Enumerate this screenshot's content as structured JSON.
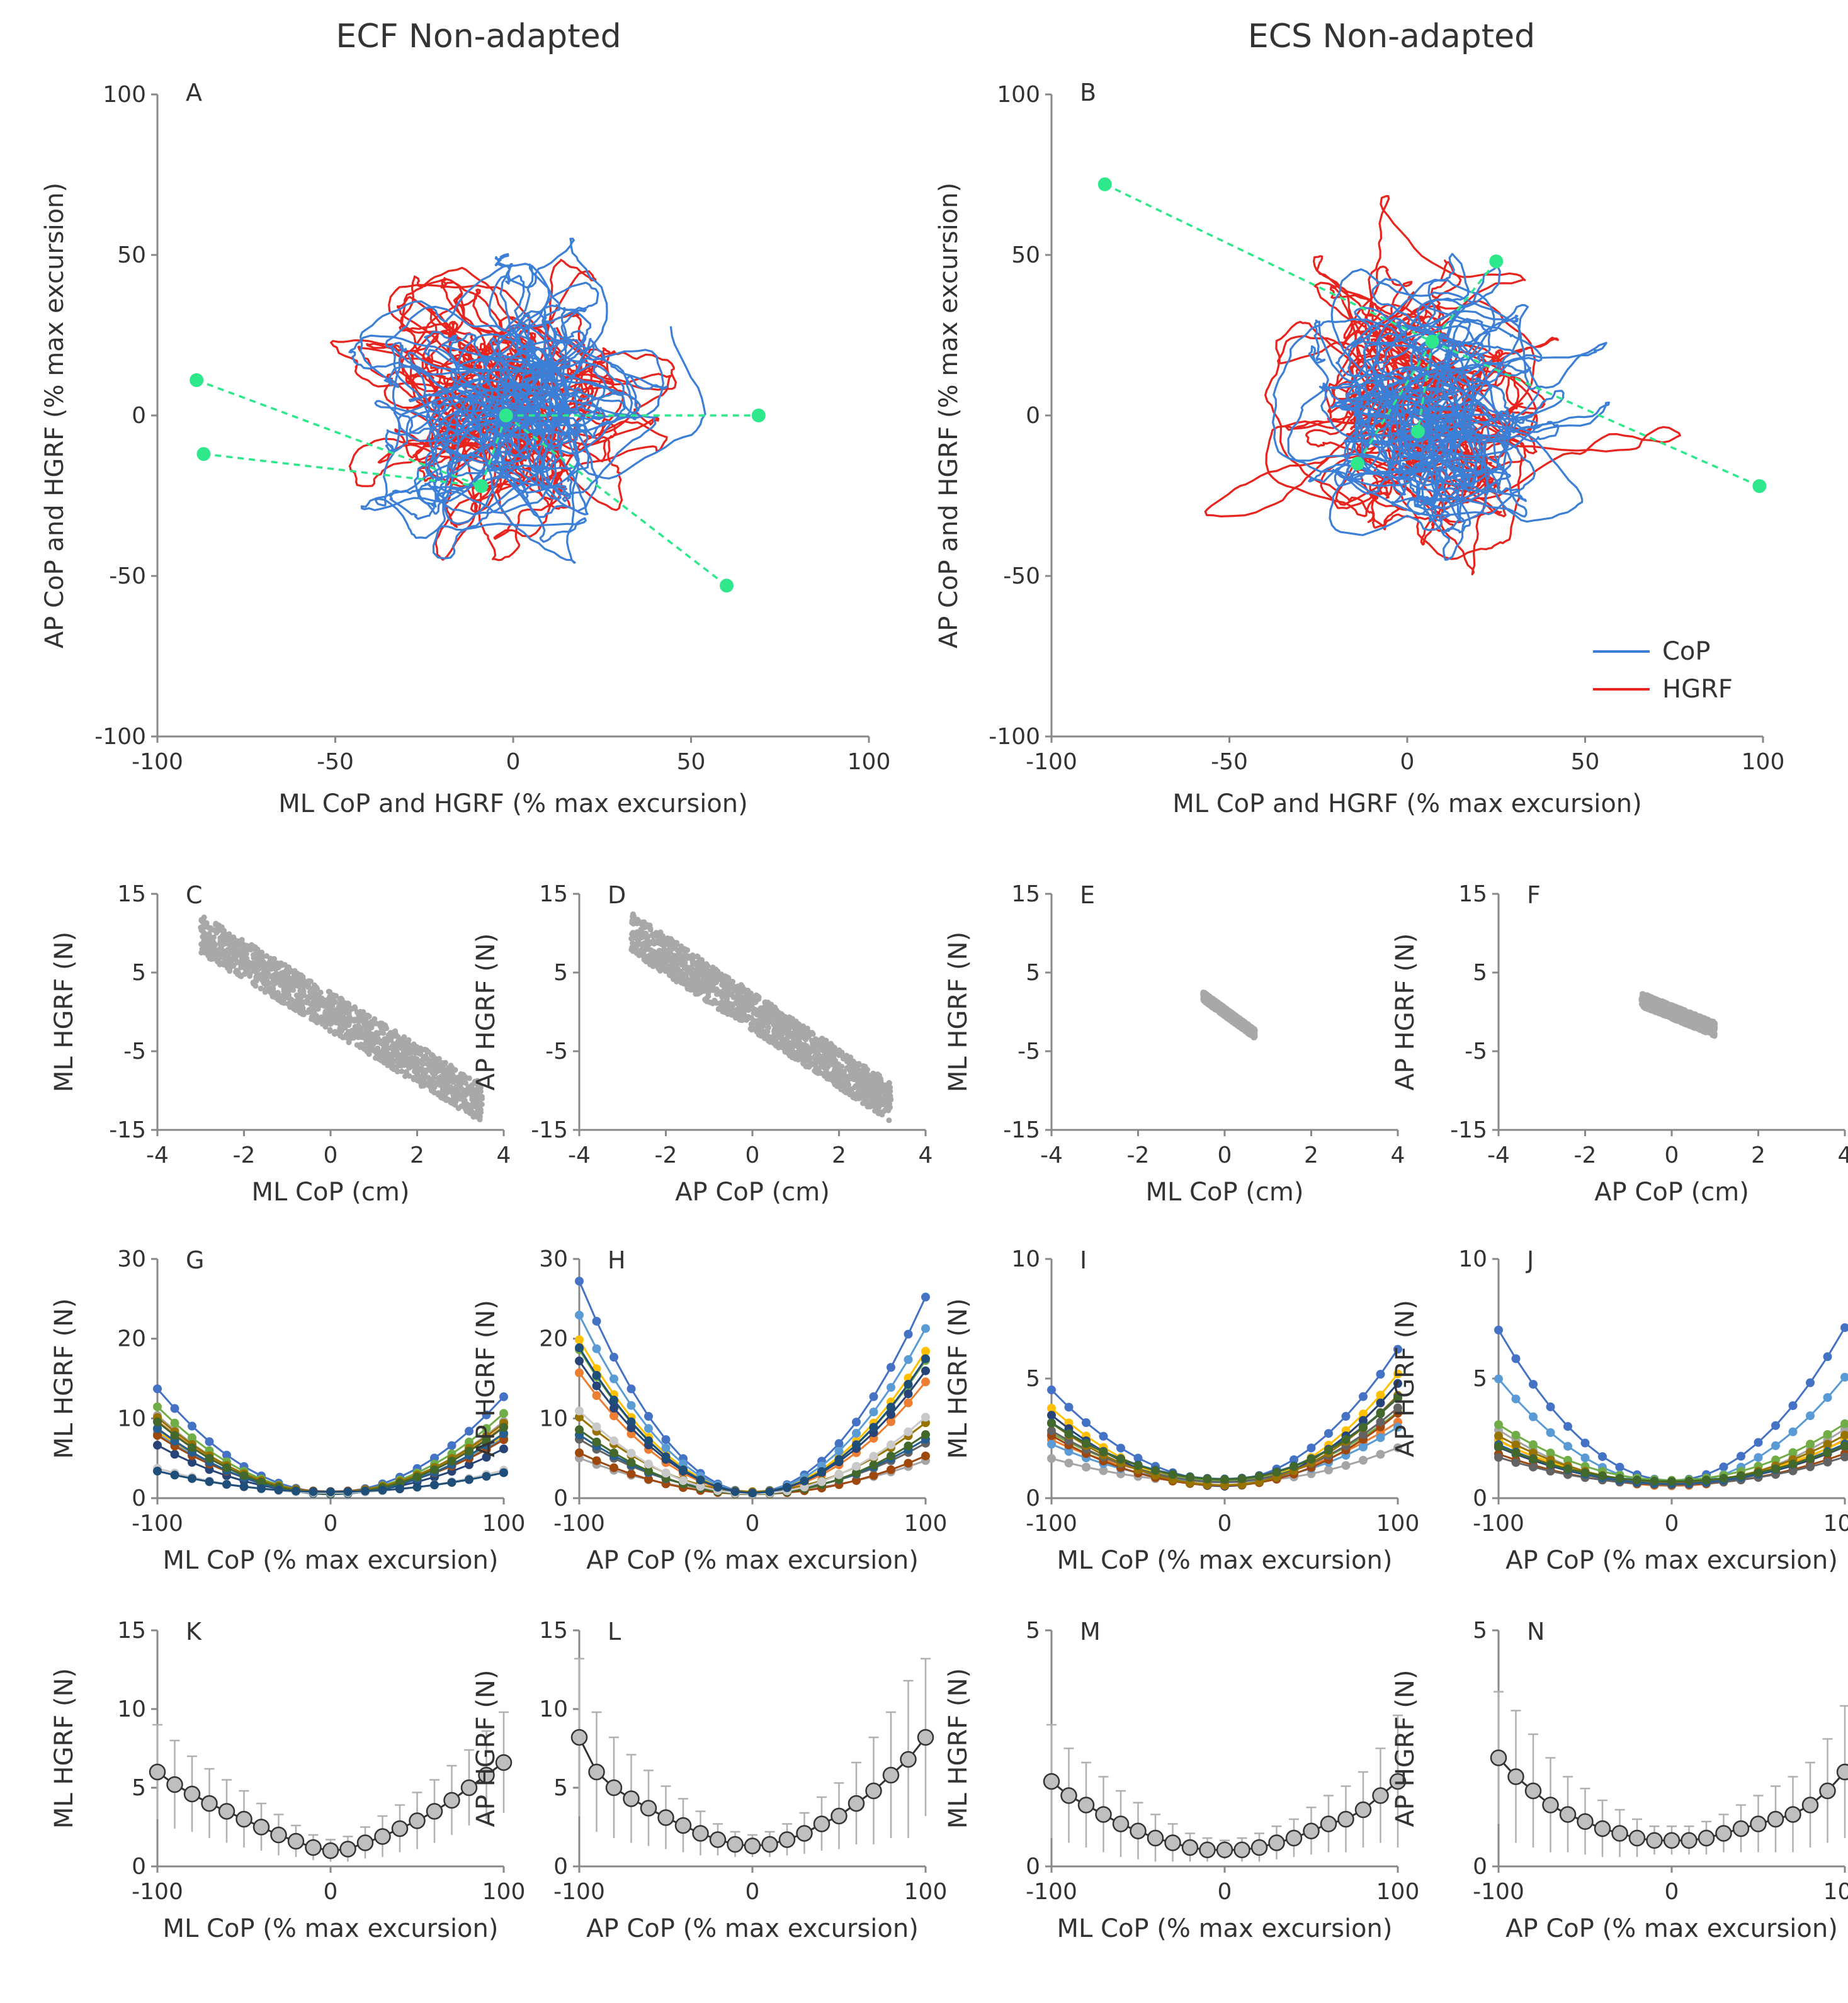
{
  "titles": {
    "left": "ECF Non-adapted",
    "right": "ECS Non-adapted"
  },
  "colors": {
    "cop": "#3c7fd6",
    "hgrf": "#e8241e",
    "green": "#2ee88b",
    "grey": "#a8a8a8",
    "axis": "#888888"
  },
  "legend": {
    "cop": "CoP",
    "hgrf": "HGRF"
  },
  "chart_data": [
    {
      "panel": "A",
      "type": "line",
      "xlabel": "ML CoP and HGRF (% max excursion)",
      "ylabel": "AP CoP and HGRF (% max excursion)",
      "xlim": [
        -100,
        100
      ],
      "ylim": [
        -100,
        100
      ],
      "xticks": [
        -100,
        -50,
        0,
        50,
        100
      ],
      "yticks": [
        -100,
        -50,
        0,
        50,
        100
      ],
      "series": [
        {
          "name": "CoP"
        },
        {
          "name": "HGRF"
        }
      ],
      "markers": [
        [
          -89,
          11
        ],
        [
          -87,
          -12
        ],
        [
          -2,
          0
        ],
        [
          -9,
          -22
        ],
        [
          69,
          0
        ],
        [
          60,
          -53
        ]
      ]
    },
    {
      "panel": "B",
      "type": "line",
      "xlabel": "ML CoP and HGRF (% max excursion)",
      "ylabel": "AP CoP and HGRF (% max excursion)",
      "xlim": [
        -100,
        100
      ],
      "ylim": [
        -100,
        100
      ],
      "xticks": [
        -100,
        -50,
        0,
        50,
        100
      ],
      "yticks": [
        -100,
        -50,
        0,
        50,
        100
      ],
      "series": [
        {
          "name": "CoP"
        },
        {
          "name": "HGRF"
        }
      ],
      "markers": [
        [
          -85,
          72
        ],
        [
          25,
          48
        ],
        [
          7,
          23
        ],
        [
          3,
          -5
        ],
        [
          -14,
          -15
        ],
        [
          99,
          -22
        ]
      ],
      "legend_position": "bottom-right"
    },
    {
      "panel": "C",
      "type": "scatter",
      "xlabel": "ML CoP (cm)",
      "ylabel": "ML HGRF (N)",
      "xlim": [
        -4,
        4
      ],
      "ylim": [
        -15,
        15
      ],
      "xticks": [
        -4,
        -2,
        0,
        2,
        4
      ],
      "yticks": [
        -15,
        -5,
        5,
        15
      ],
      "trend": {
        "x": [
          -3.0,
          3.5
        ],
        "slope": -3.3,
        "spread": 2.5
      }
    },
    {
      "panel": "D",
      "type": "scatter",
      "xlabel": "AP CoP (cm)",
      "ylabel": "AP HGRF (N)",
      "xlim": [
        -4,
        4
      ],
      "ylim": [
        -15,
        15
      ],
      "xticks": [
        -4,
        -2,
        0,
        2,
        4
      ],
      "yticks": [
        -15,
        -5,
        5,
        15
      ],
      "trend": {
        "x": [
          -2.8,
          3.2
        ],
        "slope": -3.6,
        "spread": 2.5
      }
    },
    {
      "panel": "E",
      "type": "scatter",
      "xlabel": "ML CoP (cm)",
      "ylabel": "ML HGRF (N)",
      "xlim": [
        -4,
        4
      ],
      "ylim": [
        -15,
        15
      ],
      "xticks": [
        -4,
        -2,
        0,
        2,
        4
      ],
      "yticks": [
        -15,
        -5,
        5,
        15
      ],
      "trend": {
        "x": [
          -0.5,
          0.7
        ],
        "slope": -4.0,
        "spread": 0.6
      }
    },
    {
      "panel": "F",
      "type": "scatter",
      "xlabel": "AP CoP (cm)",
      "ylabel": "AP HGRF (N)",
      "xlim": [
        -4,
        4
      ],
      "ylim": [
        -15,
        15
      ],
      "xticks": [
        -4,
        -2,
        0,
        2,
        4
      ],
      "yticks": [
        -15,
        -5,
        5,
        15
      ],
      "trend": {
        "x": [
          -0.7,
          1.0
        ],
        "slope": -2.2,
        "spread": 0.9
      }
    },
    {
      "panel": "G",
      "type": "line",
      "xlabel": "ML CoP (% max excursion)",
      "ylabel": "ML HGRF (N)",
      "xlim": [
        -100,
        100
      ],
      "ylim": [
        0,
        30
      ],
      "xticks": [
        -100,
        0,
        100
      ],
      "yticks": [
        0,
        10,
        20,
        30
      ],
      "curves": {
        "left": [
          13,
          10,
          8.5,
          7.5,
          6,
          5,
          4,
          3.5,
          3,
          2.5,
          2,
          1.8,
          1.5,
          1.5,
          1.4,
          1.2
        ],
        "right": [
          12,
          11,
          10,
          8,
          6,
          5,
          4,
          3,
          2.5,
          2,
          1.5,
          1.3,
          1.2,
          1.2,
          1.2,
          1.2
        ],
        "count": 14
      }
    },
    {
      "panel": "H",
      "type": "line",
      "xlabel": "AP CoP (% max excursion)",
      "ylabel": "AP HGRF (N)",
      "xlim": [
        -100,
        100
      ],
      "ylim": [
        0,
        30
      ],
      "xticks": [
        -100,
        0,
        100
      ],
      "yticks": [
        0,
        10,
        20,
        30
      ],
      "curves": {
        "left": [
          26.5,
          14,
          12,
          10,
          8,
          6.5,
          5,
          4,
          3.5,
          3,
          2.5,
          2,
          1.8,
          1.6,
          1.5,
          1.5
        ],
        "right": [
          24.5,
          17,
          14,
          11,
          8,
          6,
          4.5,
          3.5,
          3,
          2.5,
          2,
          1.8,
          1.6,
          1.5,
          1.5,
          1.5
        ],
        "count": 14
      }
    },
    {
      "panel": "I",
      "type": "line",
      "xlabel": "ML CoP (% max excursion)",
      "ylabel": "ML HGRF (N)",
      "xlim": [
        -100,
        100
      ],
      "ylim": [
        0,
        10
      ],
      "xticks": [
        -100,
        0,
        100
      ],
      "yticks": [
        0,
        5,
        10
      ],
      "curves": {
        "left": [
          3.8,
          3.0,
          2.5,
          2.2,
          1.8,
          1.5,
          1.2,
          1.0,
          0.8,
          0.6,
          0.5,
          0.4,
          0.4,
          0.4,
          0.4,
          0.4
        ],
        "right": [
          5.5,
          4.0,
          3.0,
          2.5,
          2.0,
          1.5,
          1.2,
          1.0,
          0.8,
          0.6,
          0.5,
          0.4,
          0.4,
          0.4,
          0.4,
          0.4
        ],
        "count": 12
      }
    },
    {
      "panel": "J",
      "type": "line",
      "xlabel": "AP CoP (% max excursion)",
      "ylabel": "AP HGRF (N)",
      "xlim": [
        -100,
        100
      ],
      "ylim": [
        0,
        10
      ],
      "xticks": [
        -100,
        0,
        100
      ],
      "yticks": [
        0,
        5,
        10
      ],
      "curves": {
        "left": [
          6.3,
          5.8,
          5.2,
          4.5,
          3.8,
          3.0,
          2.5,
          2.0,
          1.6,
          1.3,
          1.0,
          0.9,
          0.8,
          0.8,
          0.8,
          0.8
        ],
        "right": [
          6.4,
          3.8,
          3.0,
          2.5,
          2.0,
          1.6,
          1.3,
          1.1,
          1.0,
          0.9,
          0.8,
          0.8,
          0.8,
          0.8,
          0.8,
          0.8
        ],
        "count": 12
      }
    },
    {
      "panel": "K",
      "type": "line",
      "xlabel": "ML CoP (% max excursion)",
      "ylabel": "ML HGRF (N)",
      "xlim": [
        -100,
        100
      ],
      "ylim": [
        0,
        15
      ],
      "xticks": [
        -100,
        0,
        100
      ],
      "yticks": [
        0,
        5,
        10,
        15
      ],
      "x": [
        -100,
        -90,
        -80,
        -70,
        -60,
        -50,
        -40,
        -30,
        -20,
        -10,
        0,
        10,
        20,
        30,
        40,
        50,
        60,
        70,
        80,
        90,
        100
      ],
      "y": [
        6.0,
        5.2,
        4.6,
        4.0,
        3.5,
        3.0,
        2.5,
        2.0,
        1.6,
        1.2,
        1.0,
        1.1,
        1.5,
        1.9,
        2.4,
        2.9,
        3.5,
        4.2,
        5.0,
        5.8,
        6.6
      ],
      "err": [
        3.0,
        2.8,
        2.4,
        2.2,
        2.0,
        1.8,
        1.5,
        1.3,
        1.0,
        0.8,
        0.7,
        0.8,
        1.0,
        1.3,
        1.5,
        1.8,
        2.0,
        2.2,
        2.4,
        2.8,
        3.2
      ]
    },
    {
      "panel": "L",
      "type": "line",
      "xlabel": "AP CoP (% max excursion)",
      "ylabel": "AP HGRF (N)",
      "xlim": [
        -100,
        100
      ],
      "ylim": [
        0,
        15
      ],
      "xticks": [
        -100,
        0,
        100
      ],
      "yticks": [
        0,
        5,
        10,
        15
      ],
      "x": [
        -100,
        -90,
        -80,
        -70,
        -60,
        -50,
        -40,
        -30,
        -20,
        -10,
        0,
        10,
        20,
        30,
        40,
        50,
        60,
        70,
        80,
        90,
        100
      ],
      "y": [
        8.2,
        6.0,
        5.0,
        4.3,
        3.7,
        3.1,
        2.6,
        2.1,
        1.7,
        1.4,
        1.3,
        1.4,
        1.7,
        2.1,
        2.7,
        3.2,
        4.0,
        4.8,
        5.8,
        6.8,
        8.2
      ],
      "err": [
        5.0,
        3.8,
        3.2,
        2.8,
        2.4,
        2.0,
        1.7,
        1.4,
        1.0,
        0.8,
        0.7,
        0.8,
        1.0,
        1.3,
        1.7,
        2.1,
        2.6,
        3.4,
        4.0,
        5.0,
        5.0
      ]
    },
    {
      "panel": "M",
      "type": "line",
      "xlabel": "ML CoP (% max excursion)",
      "ylabel": "ML HGRF (N)",
      "xlim": [
        -100,
        100
      ],
      "ylim": [
        0,
        5
      ],
      "xticks": [
        -100,
        0,
        100
      ],
      "yticks": [
        0,
        5
      ],
      "x": [
        -100,
        -90,
        -80,
        -70,
        -60,
        -50,
        -40,
        -30,
        -20,
        -10,
        0,
        10,
        20,
        30,
        40,
        50,
        60,
        70,
        80,
        90,
        100
      ],
      "y": [
        1.8,
        1.5,
        1.3,
        1.1,
        0.9,
        0.75,
        0.6,
        0.5,
        0.4,
        0.35,
        0.35,
        0.35,
        0.4,
        0.5,
        0.6,
        0.75,
        0.9,
        1.0,
        1.2,
        1.5,
        1.8
      ],
      "err": [
        1.2,
        1.0,
        0.9,
        0.8,
        0.7,
        0.6,
        0.5,
        0.4,
        0.3,
        0.25,
        0.2,
        0.25,
        0.3,
        0.35,
        0.4,
        0.5,
        0.6,
        0.7,
        0.8,
        1.0,
        1.4
      ]
    },
    {
      "panel": "N",
      "type": "line",
      "xlabel": "AP CoP (% max excursion)",
      "ylabel": "AP HGRF (N)",
      "xlim": [
        -100,
        100
      ],
      "ylim": [
        0,
        5
      ],
      "xticks": [
        -100,
        0,
        100
      ],
      "yticks": [
        0,
        5
      ],
      "x": [
        -100,
        -90,
        -80,
        -70,
        -60,
        -50,
        -40,
        -30,
        -20,
        -10,
        0,
        10,
        20,
        30,
        40,
        50,
        60,
        70,
        80,
        90,
        100
      ],
      "y": [
        2.3,
        1.9,
        1.6,
        1.3,
        1.1,
        0.95,
        0.8,
        0.7,
        0.6,
        0.55,
        0.55,
        0.55,
        0.6,
        0.7,
        0.8,
        0.9,
        1.0,
        1.1,
        1.3,
        1.6,
        2.0
      ],
      "err": [
        1.4,
        1.4,
        1.2,
        1.0,
        0.8,
        0.7,
        0.6,
        0.5,
        0.4,
        0.3,
        0.3,
        0.3,
        0.35,
        0.4,
        0.5,
        0.6,
        0.7,
        0.8,
        0.9,
        1.1,
        1.4
      ]
    }
  ]
}
